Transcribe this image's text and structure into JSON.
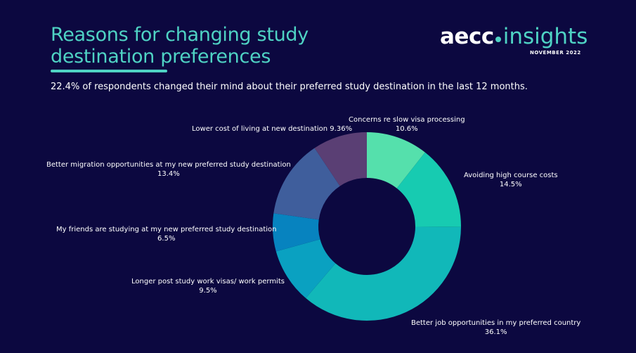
{
  "header": {
    "title": "Reasons for changing study destination preferences",
    "subtitle": "22.4% of respondents changed their mind about their preferred study destination in the last 12 months."
  },
  "logo": {
    "brand": "aecc",
    "product": "insights",
    "date": "NOVEMBER 2022"
  },
  "colors": {
    "background": "#0c0840",
    "accent": "#4fd3c4"
  },
  "chart_data": {
    "type": "pie",
    "donut": true,
    "title": "",
    "slices": [
      {
        "label": "Concerns re slow visa processing",
        "value": 10.6,
        "display": "10.6%",
        "color": "#55e0ac"
      },
      {
        "label": "Avoiding high course costs",
        "value": 14.5,
        "display": "14.5%",
        "color": "#17cbb1"
      },
      {
        "label": "Better job opportunities in my preferred country",
        "value": 36.1,
        "display": "36.1%",
        "color": "#11b8b9"
      },
      {
        "label": "Longer post study work visas/ work permits",
        "value": 9.5,
        "display": "9.5%",
        "color": "#0aa1c1"
      },
      {
        "label": "My friends are studying at my new preferred study destination",
        "value": 6.5,
        "display": "6.5%",
        "color": "#0783bf"
      },
      {
        "label": "Better migration opportunities at my new preferred study destination",
        "value": 13.4,
        "display": "13.4%",
        "color": "#3f5e9c"
      },
      {
        "label": "Lower cost of living at new destination",
        "value": 9.36,
        "display": "9.36%",
        "color": "#5a3f74"
      }
    ]
  }
}
